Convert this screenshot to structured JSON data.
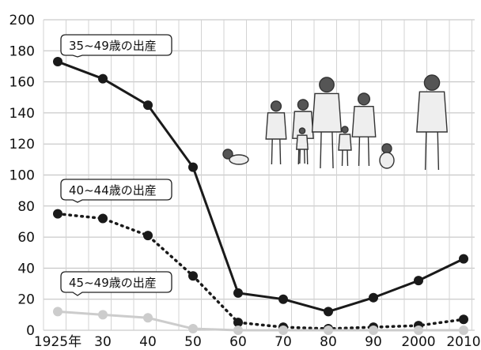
{
  "chart_data": {
    "type": "line",
    "title": "",
    "xlabel": "",
    "ylabel": "",
    "x": [
      1925,
      1930,
      1940,
      1950,
      1960,
      1970,
      1980,
      1990,
      2000,
      2010
    ],
    "x_tick_labels": [
      "1925年",
      "30",
      "40",
      "50",
      "60",
      "70",
      "80",
      "90",
      "2000",
      "2010"
    ],
    "y_ticks": [
      0,
      20,
      40,
      60,
      80,
      100,
      120,
      140,
      160,
      180,
      200
    ],
    "ylim": [
      0,
      200
    ],
    "grid": true,
    "series": [
      {
        "name": "35~49歳の出産",
        "style": "solid",
        "color": "#1a1a1a",
        "values": [
          173,
          162,
          145,
          105,
          24,
          20,
          12,
          21,
          32,
          46
        ]
      },
      {
        "name": "40~44歳の出産",
        "style": "dotted",
        "color": "#1a1a1a",
        "values": [
          75,
          72,
          61,
          35,
          5,
          2,
          1,
          2,
          3,
          7
        ]
      },
      {
        "name": "45~49歳の出産",
        "style": "solid",
        "color": "#cccccc",
        "values": [
          12,
          10,
          8,
          1,
          0,
          0,
          0,
          0,
          0,
          0
        ]
      }
    ]
  },
  "illustration": {
    "name": "family-illustration"
  }
}
